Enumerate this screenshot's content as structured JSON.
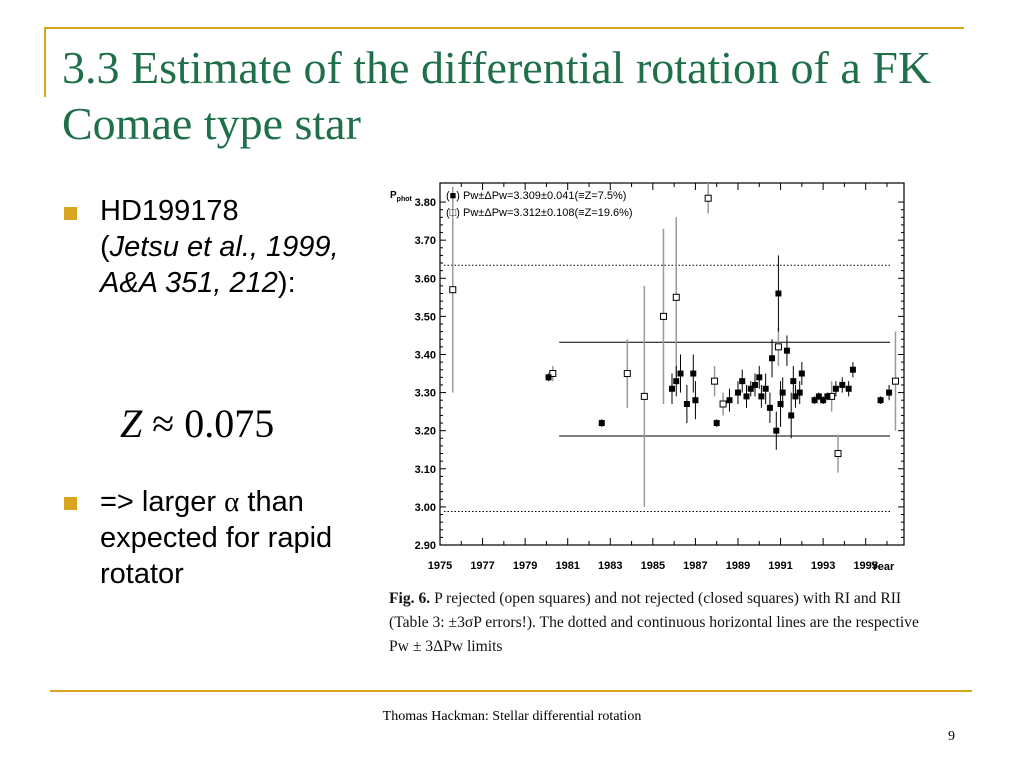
{
  "slide": {
    "title": "3.3 Estimate of the differential rotation of a FK Comae type star",
    "bullet1": {
      "star": "HD199178",
      "open": "(",
      "ref": "Jetsu et al., 1999, A&A 351, 212",
      "close": "):"
    },
    "formula": {
      "z": "Z",
      "rest": "≈ 0.075"
    },
    "bullet2": {
      "prefix": "=> larger ",
      "alpha": "α",
      "suffix": " than expected for rapid rotator"
    },
    "caption": {
      "bold": "Fig. 6.",
      "text": "P rejected (open squares) and not rejected (closed squares) with RI and RII (Table 3: ±3σP errors!). The dotted and continuous horizontal lines are the respective Pw ± 3ΔPw limits"
    },
    "footer": "Thomas Hackman: Stellar differential rotation",
    "page_number": "9",
    "accent_color": "#d9a520",
    "title_color": "#1f6f4a"
  },
  "chart_data": {
    "type": "scatter",
    "ylabel": "Pphot",
    "xlabel": "Year",
    "xlim": [
      1975,
      1996.8
    ],
    "ylim": [
      2.9,
      3.85
    ],
    "yticks": [
      "2.90",
      "3.00",
      "3.10",
      "3.20",
      "3.30",
      "3.40",
      "3.50",
      "3.60",
      "3.70",
      "3.80"
    ],
    "xticks": [
      "1975",
      "1977",
      "1979",
      "1981",
      "1983",
      "1985",
      "1987",
      "1989",
      "1991",
      "1993",
      "1995"
    ],
    "legend": [
      "(■) Pw±ΔPw=3.309±0.041(≡Z=7.5%)",
      "(□) Pw±ΔPw=3.312±0.108(≡Z=19.6%)"
    ],
    "hlines": {
      "dotted": [
        3.634,
        2.988
      ],
      "solid": [
        3.432,
        3.186
      ]
    },
    "series": [
      {
        "name": "rejected",
        "marker": "open-square",
        "points": [
          {
            "x": 1975.6,
            "y": 3.57,
            "err": 0.27
          },
          {
            "x": 1980.3,
            "y": 3.35,
            "err": 0.02
          },
          {
            "x": 1983.8,
            "y": 3.35,
            "err": 0.09
          },
          {
            "x": 1984.6,
            "y": 3.29,
            "err": 0.29
          },
          {
            "x": 1985.5,
            "y": 3.5,
            "err": 0.23
          },
          {
            "x": 1986.1,
            "y": 3.55,
            "err": 0.21
          },
          {
            "x": 1987.6,
            "y": 3.81,
            "err": 0.04
          },
          {
            "x": 1987.9,
            "y": 3.33,
            "err": 0.04
          },
          {
            "x": 1988.3,
            "y": 3.27,
            "err": 0.03
          },
          {
            "x": 1990.9,
            "y": 3.42,
            "err": 0.05
          },
          {
            "x": 1993.4,
            "y": 3.29,
            "err": 0.04
          },
          {
            "x": 1993.7,
            "y": 3.14,
            "err": 0.05
          },
          {
            "x": 1996.4,
            "y": 3.33,
            "err": 0.13
          }
        ]
      },
      {
        "name": "not rejected",
        "marker": "filled-square",
        "points": [
          {
            "x": 1980.1,
            "y": 3.34,
            "err": 0.01
          },
          {
            "x": 1982.6,
            "y": 3.22,
            "err": 0.01
          },
          {
            "x": 1985.9,
            "y": 3.31,
            "err": 0.04
          },
          {
            "x": 1986.1,
            "y": 3.33,
            "err": 0.04
          },
          {
            "x": 1986.3,
            "y": 3.35,
            "err": 0.05
          },
          {
            "x": 1986.6,
            "y": 3.27,
            "err": 0.05
          },
          {
            "x": 1986.9,
            "y": 3.35,
            "err": 0.05
          },
          {
            "x": 1987.0,
            "y": 3.28,
            "err": 0.05
          },
          {
            "x": 1988.0,
            "y": 3.22,
            "err": 0.01
          },
          {
            "x": 1988.6,
            "y": 3.28,
            "err": 0.03
          },
          {
            "x": 1989.0,
            "y": 3.3,
            "err": 0.03
          },
          {
            "x": 1989.2,
            "y": 3.33,
            "err": 0.03
          },
          {
            "x": 1989.4,
            "y": 3.29,
            "err": 0.03
          },
          {
            "x": 1989.6,
            "y": 3.31,
            "err": 0.02
          },
          {
            "x": 1989.8,
            "y": 3.32,
            "err": 0.03
          },
          {
            "x": 1990.0,
            "y": 3.34,
            "err": 0.03
          },
          {
            "x": 1990.1,
            "y": 3.29,
            "err": 0.03
          },
          {
            "x": 1990.3,
            "y": 3.31,
            "err": 0.04
          },
          {
            "x": 1990.5,
            "y": 3.26,
            "err": 0.04
          },
          {
            "x": 1990.6,
            "y": 3.39,
            "err": 0.05
          },
          {
            "x": 1990.8,
            "y": 3.2,
            "err": 0.05
          },
          {
            "x": 1990.9,
            "y": 3.56,
            "err": 0.1
          },
          {
            "x": 1991.0,
            "y": 3.27,
            "err": 0.06
          },
          {
            "x": 1991.1,
            "y": 3.3,
            "err": 0.04
          },
          {
            "x": 1991.3,
            "y": 3.41,
            "err": 0.04
          },
          {
            "x": 1991.5,
            "y": 3.24,
            "err": 0.06
          },
          {
            "x": 1991.6,
            "y": 3.33,
            "err": 0.04
          },
          {
            "x": 1991.7,
            "y": 3.29,
            "err": 0.03
          },
          {
            "x": 1991.9,
            "y": 3.3,
            "err": 0.03
          },
          {
            "x": 1992.0,
            "y": 3.35,
            "err": 0.03
          },
          {
            "x": 1992.6,
            "y": 3.28,
            "err": 0.01
          },
          {
            "x": 1992.8,
            "y": 3.29,
            "err": 0.01
          },
          {
            "x": 1993.0,
            "y": 3.28,
            "err": 0.01
          },
          {
            "x": 1993.2,
            "y": 3.29,
            "err": 0.01
          },
          {
            "x": 1993.6,
            "y": 3.31,
            "err": 0.02
          },
          {
            "x": 1993.9,
            "y": 3.32,
            "err": 0.02
          },
          {
            "x": 1994.2,
            "y": 3.31,
            "err": 0.02
          },
          {
            "x": 1994.4,
            "y": 3.36,
            "err": 0.02
          },
          {
            "x": 1995.7,
            "y": 3.28,
            "err": 0.01
          },
          {
            "x": 1996.1,
            "y": 3.3,
            "err": 0.02
          }
        ]
      }
    ]
  }
}
